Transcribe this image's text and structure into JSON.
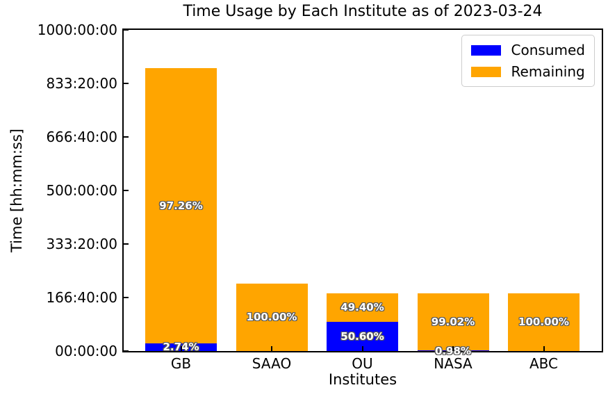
{
  "chart_data": {
    "type": "stacked-bar",
    "title": "Time Usage by Each Institute as of 2023-03-24",
    "xlabel": "Institutes",
    "ylabel": "Time [hh:mm:ss]",
    "ylim_hours": [
      0,
      1000
    ],
    "ytick_labels": [
      "00:00:00",
      "166:40:00",
      "333:20:00",
      "500:00:00",
      "666:40:00",
      "833:20:00",
      "1000:00:00"
    ],
    "grid": false,
    "categories": [
      "GB",
      "SAAO",
      "OU",
      "NASA",
      "ABC"
    ],
    "series": [
      {
        "name": "Consumed",
        "color": "#0000ff"
      },
      {
        "name": "Remaining",
        "color": "#ffa500"
      }
    ],
    "bars": [
      {
        "institute": "GB",
        "approx_total_hours": 880,
        "consumed_pct": 2.74,
        "remaining_pct": 97.26,
        "consumed_label": "2.74%",
        "remaining_label": "97.26%"
      },
      {
        "institute": "SAAO",
        "approx_total_hours": 210,
        "consumed_pct": 0,
        "remaining_pct": 100,
        "consumed_label": null,
        "remaining_label": "100.00%"
      },
      {
        "institute": "OU",
        "approx_total_hours": 180,
        "consumed_pct": 50.6,
        "remaining_pct": 49.4,
        "consumed_label": "50.60%",
        "remaining_label": "49.40%"
      },
      {
        "institute": "NASA",
        "approx_total_hours": 180,
        "consumed_pct": 0.98,
        "remaining_pct": 99.02,
        "consumed_label": "0.98%",
        "remaining_label": "99.02%"
      },
      {
        "institute": "ABC",
        "approx_total_hours": 180,
        "consumed_pct": 0,
        "remaining_pct": 100,
        "consumed_label": null,
        "remaining_label": "100.00%"
      }
    ],
    "legend": {
      "position": "upper-right",
      "entries": [
        "Consumed",
        "Remaining"
      ]
    },
    "label_text_color": "#ffffff",
    "label_outline_color": "#5a5a5a",
    "spine_color": "#000000"
  }
}
